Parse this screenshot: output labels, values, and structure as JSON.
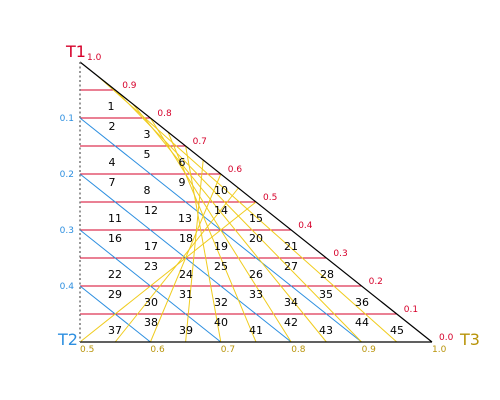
{
  "corners": {
    "t1": "T1",
    "t2": "T2",
    "t3": "T3"
  },
  "colors": {
    "t1": "#d6002a",
    "t2": "#2d8fe0",
    "t3": "#b8940a",
    "red_line": "#d6002a",
    "blue_line": "#2d8fe0",
    "yellow_line": "#f0cc1e",
    "frame": "#000000",
    "dotted": "#777777"
  },
  "ticks": {
    "t1": [
      "1.0",
      "0.9",
      "0.8",
      "0.7",
      "0.6",
      "0.5",
      "0.4",
      "0.3",
      "0.2",
      "0.1",
      "0.0"
    ],
    "t2": [
      "0.1",
      "0.2",
      "0.3",
      "0.4"
    ],
    "t3": [
      "0.5",
      "0.6",
      "0.7",
      "0.8",
      "0.9",
      "1.0"
    ]
  },
  "cells": [
    "1",
    "2",
    "3",
    "4",
    "5",
    "6",
    "7",
    "8",
    "9",
    "10",
    "11",
    "12",
    "13",
    "14",
    "15",
    "16",
    "17",
    "18",
    "19",
    "20",
    "21",
    "22",
    "23",
    "24",
    "25",
    "26",
    "27",
    "28",
    "29",
    "30",
    "31",
    "32",
    "33",
    "34",
    "35",
    "36",
    "37",
    "38",
    "39",
    "40",
    "41",
    "42",
    "43",
    "44",
    "45"
  ]
}
